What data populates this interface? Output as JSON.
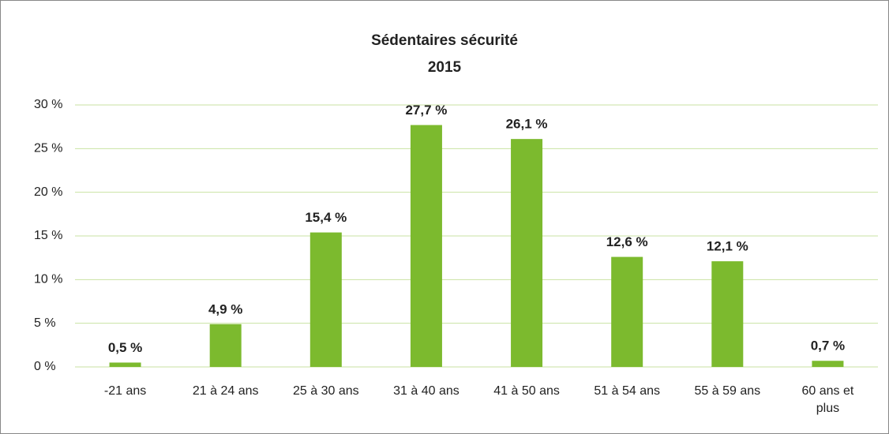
{
  "chart_data": {
    "type": "bar",
    "title": "Sédentaires sécurité",
    "subtitle": "2015",
    "categories": [
      "-21 ans",
      "21 à 24 ans",
      "25 à 30 ans",
      "31 à 40 ans",
      "41 à 50 ans",
      "51 à 54 ans",
      "55 à 59 ans",
      "60 ans et plus"
    ],
    "values": [
      0.5,
      4.9,
      15.4,
      27.7,
      26.1,
      12.6,
      12.1,
      0.7
    ],
    "value_labels": [
      "0,5 %",
      "4,9 %",
      "15,4 %",
      "27,7 %",
      "26,1 %",
      "12,6 %",
      "12,1 %",
      "0,7 %"
    ],
    "color": "#7cba2e",
    "ylim": [
      0,
      30
    ],
    "yticks": [
      {
        "value": 0,
        "label": "0 %"
      },
      {
        "value": 5,
        "label": "5 %"
      },
      {
        "value": 10,
        "label": "10 %"
      },
      {
        "value": 15,
        "label": "15 %"
      },
      {
        "value": 20,
        "label": "20 %"
      },
      {
        "value": 25,
        "label": "25 %"
      },
      {
        "value": 30,
        "label": "30 %"
      }
    ],
    "grid": true
  }
}
